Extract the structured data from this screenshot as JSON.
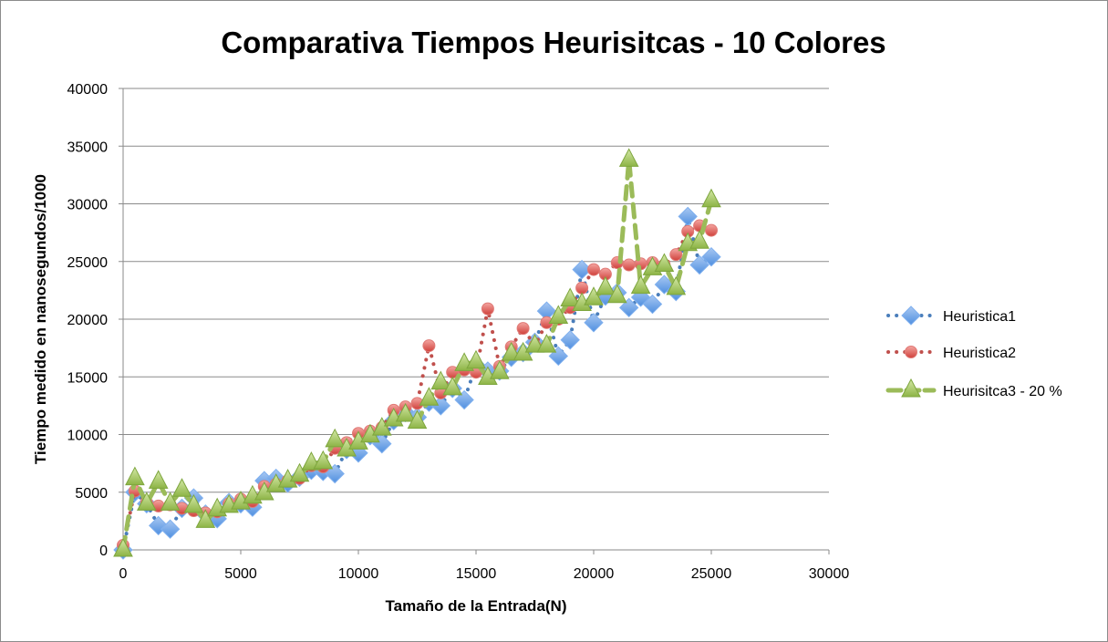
{
  "chart_data": {
    "type": "line",
    "title": "Comparativa Tiempos Heurisitcas - 10 Colores",
    "xlabel": "Tamaño de la Entrada(N)",
    "ylabel": "Tiempo medido en nanosegundos/1000",
    "xlim": [
      0,
      30000
    ],
    "ylim": [
      0,
      40000
    ],
    "xticks": [
      "0",
      "5000",
      "10000",
      "15000",
      "20000",
      "25000",
      "30000"
    ],
    "yticks": [
      "0",
      "5000",
      "10000",
      "15000",
      "20000",
      "25000",
      "30000",
      "35000",
      "40000"
    ],
    "grid": "horizontal",
    "legend_position": "right",
    "series": [
      {
        "name": "Heuristica1",
        "color": "#4a7ebb",
        "marker": "diamond",
        "line": "dotted",
        "x": [
          0,
          500,
          1000,
          1500,
          2000,
          2500,
          3000,
          3500,
          4000,
          4500,
          5000,
          5500,
          6000,
          6500,
          7000,
          7500,
          8000,
          8500,
          9000,
          9500,
          10000,
          10500,
          11000,
          11500,
          12000,
          12500,
          13000,
          13500,
          14000,
          14500,
          15000,
          15500,
          16000,
          16500,
          17000,
          17500,
          18000,
          18500,
          19000,
          19500,
          20000,
          20500,
          21000,
          21500,
          22000,
          22500,
          23000,
          23500,
          24000,
          24500,
          25000
        ],
        "y": [
          0,
          5000,
          4000,
          2100,
          1800,
          3600,
          4500,
          3100,
          2700,
          4100,
          4000,
          3700,
          6000,
          6200,
          5800,
          6300,
          6900,
          6800,
          6600,
          8700,
          8400,
          9900,
          9200,
          11200,
          11900,
          11500,
          12800,
          12500,
          14000,
          13000,
          16000,
          15500,
          15500,
          16700,
          17100,
          18000,
          20700,
          16800,
          18200,
          24300,
          19700,
          22000,
          22300,
          21000,
          21900,
          21300,
          23000,
          22400,
          28900,
          24700,
          25400
        ]
      },
      {
        "name": "Heuristica2",
        "color": "#c0504d",
        "marker": "circle",
        "line": "dotted",
        "x": [
          0,
          500,
          1000,
          1500,
          2000,
          2500,
          3000,
          3500,
          4000,
          4500,
          5000,
          5500,
          6000,
          6500,
          7000,
          7500,
          8000,
          8500,
          9000,
          9500,
          10000,
          10500,
          11000,
          11500,
          12000,
          12500,
          13000,
          13500,
          14000,
          14500,
          15000,
          15500,
          16000,
          16500,
          17000,
          17500,
          18000,
          18500,
          19000,
          19500,
          20000,
          20500,
          21000,
          21500,
          22000,
          22500,
          23000,
          23500,
          24000,
          24500,
          25000
        ],
        "y": [
          400,
          5100,
          4100,
          3800,
          3900,
          3600,
          3400,
          3200,
          3300,
          4000,
          4400,
          4200,
          5500,
          5700,
          6000,
          6200,
          7300,
          7200,
          8800,
          9300,
          10100,
          10300,
          10600,
          12100,
          12400,
          12700,
          17700,
          13600,
          15400,
          15600,
          15400,
          20900,
          15900,
          17600,
          19200,
          17700,
          19700,
          20000,
          21000,
          22700,
          24300,
          23900,
          24900,
          24700,
          24800,
          24900,
          24700,
          25600,
          27600,
          28100,
          27700
        ]
      },
      {
        "name": "Heurisitca3 - 20 %",
        "color": "#9bbb59",
        "marker": "triangle",
        "line": "dashed",
        "x": [
          0,
          500,
          1000,
          1500,
          2000,
          2500,
          3000,
          3500,
          4000,
          4500,
          5000,
          5500,
          6000,
          6500,
          7000,
          7500,
          8000,
          8500,
          9000,
          9500,
          10000,
          10500,
          11000,
          11500,
          12000,
          12500,
          13000,
          13500,
          14000,
          14500,
          15000,
          15500,
          16000,
          16500,
          17000,
          17500,
          18000,
          18500,
          19000,
          19500,
          20000,
          20500,
          21000,
          21500,
          22000,
          22500,
          23000,
          23500,
          24000,
          24500,
          25000
        ],
        "y": [
          0,
          6200,
          4000,
          5900,
          4000,
          5200,
          3800,
          2500,
          3500,
          3800,
          4100,
          4600,
          4900,
          5600,
          6000,
          6500,
          7500,
          7600,
          9500,
          8700,
          9300,
          9900,
          10500,
          11300,
          11700,
          11100,
          13100,
          14500,
          14000,
          16100,
          16300,
          14900,
          15400,
          17000,
          17000,
          17700,
          17700,
          20200,
          21700,
          21300,
          21800,
          22700,
          22000,
          33800,
          22800,
          24400,
          24700,
          22700,
          26500,
          26700,
          30300
        ]
      }
    ]
  }
}
